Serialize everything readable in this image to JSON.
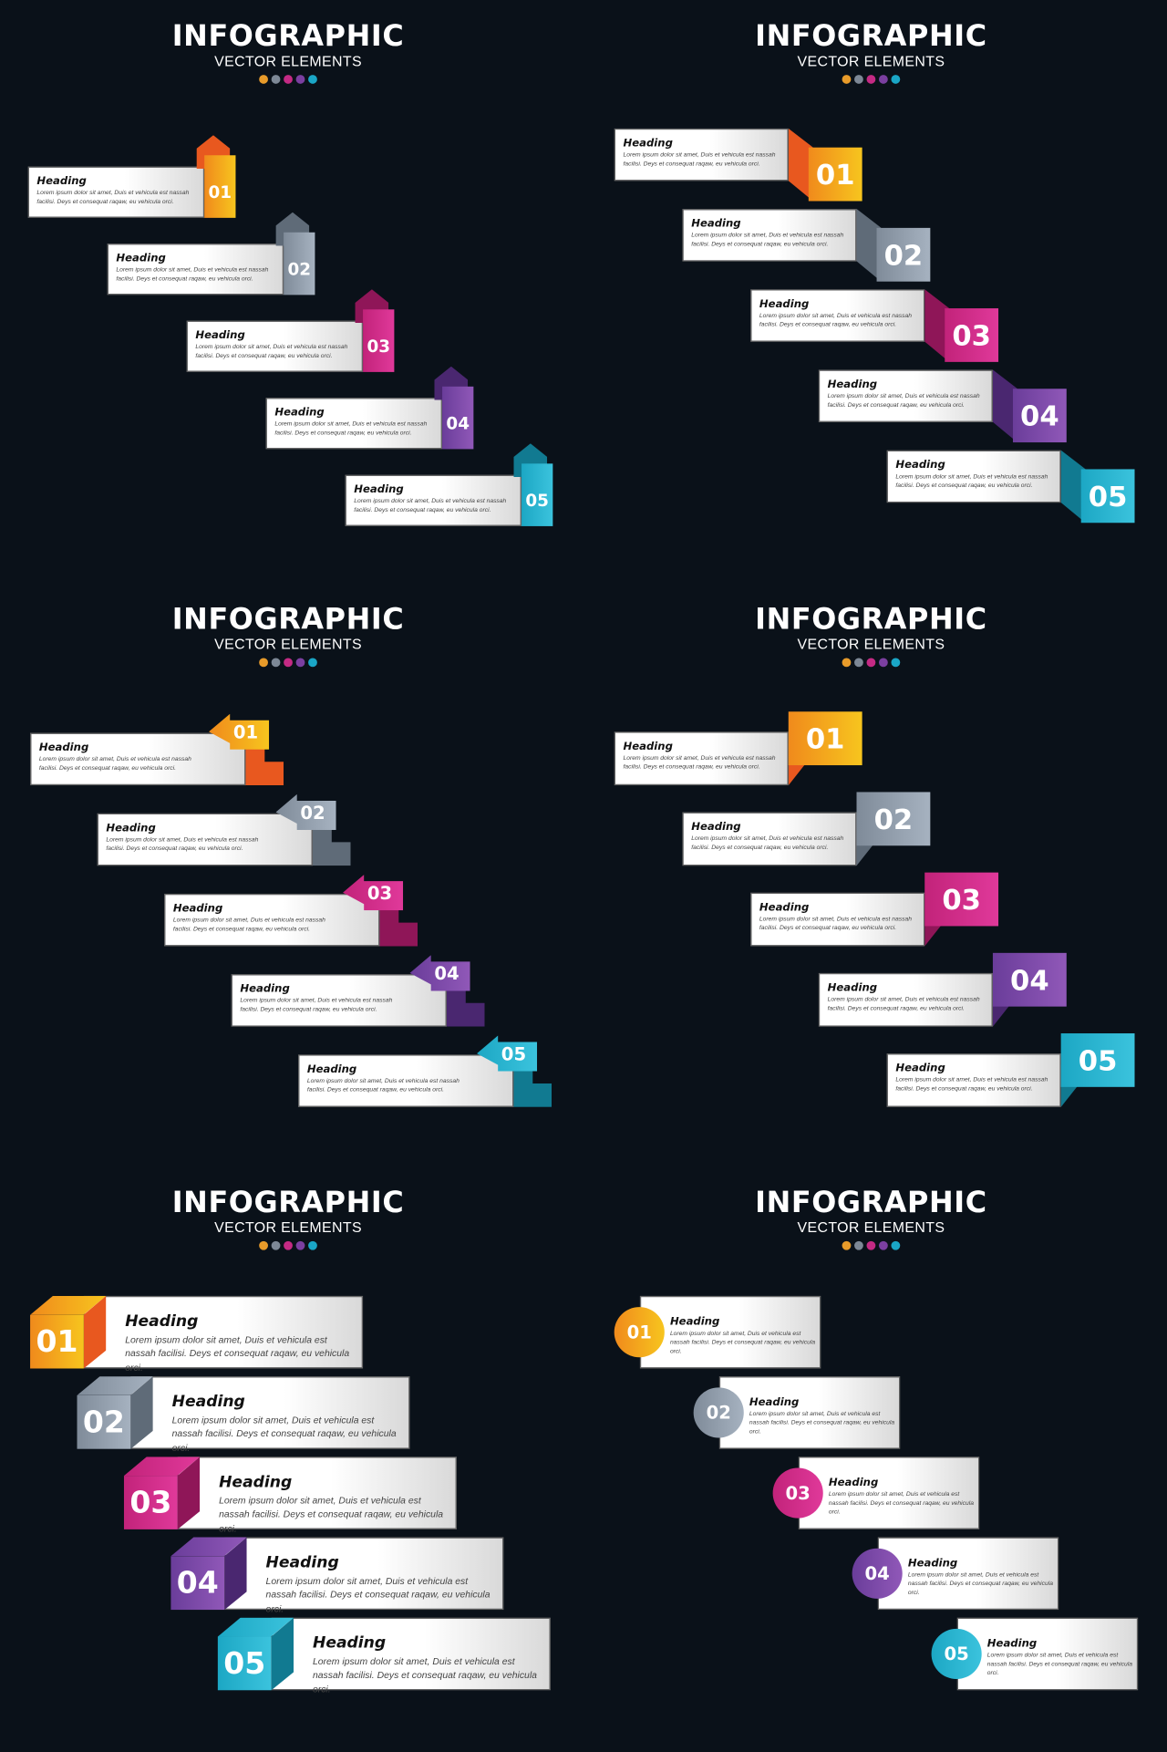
{
  "palette": {
    "c01": [
      "#f7c51e",
      "#f08a1c",
      "#e8581f"
    ],
    "c02": [
      "#a6b2c0",
      "#7f8b99",
      "#5f6b78"
    ],
    "c03": [
      "#e0399a",
      "#c2237a",
      "#8f1658"
    ],
    "c04": [
      "#9058b8",
      "#6a3d9a",
      "#4a2770"
    ],
    "c05": [
      "#3bc3dd",
      "#1ca7c4",
      "#117a91"
    ]
  },
  "dots": [
    "#e89b2a",
    "#7d8896",
    "#c42a84",
    "#7b3fa0",
    "#1aa6c6"
  ],
  "panels": [
    {
      "style": "arrow-up",
      "title": "INFOGRAPHIC",
      "subtitle": "VECTOR ELEMENTS",
      "items": [
        {
          "num": "01",
          "heading": "Heading",
          "body": "Lorem ipsum dolor sit amet, Duis et vehicula est nassah facilisi. Deys et consequat raqaw, eu vehicula orci."
        },
        {
          "num": "02",
          "heading": "Heading",
          "body": "Lorem ipsum dolor sit amet, Duis et vehicula est nassah facilisi. Deys et consequat raqaw, eu vehicula orci."
        },
        {
          "num": "03",
          "heading": "Heading",
          "body": "Lorem ipsum dolor sit amet, Duis et vehicula est nassah facilisi. Deys et consequat raqaw, eu vehicula orci."
        },
        {
          "num": "04",
          "heading": "Heading",
          "body": "Lorem ipsum dolor sit amet, Duis et vehicula est nassah facilisi. Deys et consequat raqaw, eu vehicula orci."
        },
        {
          "num": "05",
          "heading": "Heading",
          "body": "Lorem ipsum dolor sit amet, Duis et vehicula est nassah facilisi. Deys et consequat raqaw, eu vehicula orci."
        }
      ]
    },
    {
      "style": "fold-down",
      "title": "INFOGRAPHIC",
      "subtitle": "VECTOR ELEMENTS",
      "items": [
        {
          "num": "01",
          "heading": "Heading",
          "body": "Lorem ipsum dolor sit amet, Duis et vehicula est nassah facilisi. Deys et consequat raqaw, eu vehicula orci."
        },
        {
          "num": "02",
          "heading": "Heading",
          "body": "Lorem ipsum dolor sit amet, Duis et vehicula est nassah facilisi. Deys et consequat raqaw, eu vehicula orci."
        },
        {
          "num": "03",
          "heading": "Heading",
          "body": "Lorem ipsum dolor sit amet, Duis et vehicula est nassah facilisi. Deys et consequat raqaw, eu vehicula orci."
        },
        {
          "num": "04",
          "heading": "Heading",
          "body": "Lorem ipsum dolor sit amet, Duis et vehicula est nassah facilisi. Deys et consequat raqaw, eu vehicula orci."
        },
        {
          "num": "05",
          "heading": "Heading",
          "body": "Lorem ipsum dolor sit amet, Duis et vehicula est nassah facilisi. Deys et consequat raqaw, eu vehicula orci."
        }
      ]
    },
    {
      "style": "arrow-left",
      "title": "INFOGRAPHIC",
      "subtitle": "VECTOR ELEMENTS",
      "items": [
        {
          "num": "01",
          "heading": "Heading",
          "body": "Lorem ipsum dolor sit amet, Duis et vehicula est nassah facilisi. Deys et consequat raqaw, eu vehicula orci."
        },
        {
          "num": "02",
          "heading": "Heading",
          "body": "Lorem ipsum dolor sit amet, Duis et vehicula est nassah facilisi. Deys et consequat raqaw, eu vehicula orci."
        },
        {
          "num": "03",
          "heading": "Heading",
          "body": "Lorem ipsum dolor sit amet, Duis et vehicula est nassah facilisi. Deys et consequat raqaw, eu vehicula orci."
        },
        {
          "num": "04",
          "heading": "Heading",
          "body": "Lorem ipsum dolor sit amet, Duis et vehicula est nassah facilisi. Deys et consequat raqaw, eu vehicula orci."
        },
        {
          "num": "05",
          "heading": "Heading",
          "body": "Lorem ipsum dolor sit amet, Duis et vehicula est nassah facilisi. Deys et consequat raqaw, eu vehicula orci."
        }
      ]
    },
    {
      "style": "fold-up",
      "title": "INFOGRAPHIC",
      "subtitle": "VECTOR ELEMENTS",
      "items": [
        {
          "num": "01",
          "heading": "Heading",
          "body": "Lorem ipsum dolor sit amet, Duis et vehicula est nassah facilisi. Deys et consequat raqaw, eu vehicula orci."
        },
        {
          "num": "02",
          "heading": "Heading",
          "body": "Lorem ipsum dolor sit amet, Duis et vehicula est nassah facilisi. Deys et consequat raqaw, eu vehicula orci."
        },
        {
          "num": "03",
          "heading": "Heading",
          "body": "Lorem ipsum dolor sit amet, Duis et vehicula est nassah facilisi. Deys et consequat raqaw, eu vehicula orci."
        },
        {
          "num": "04",
          "heading": "Heading",
          "body": "Lorem ipsum dolor sit amet, Duis et vehicula est nassah facilisi. Deys et consequat raqaw, eu vehicula orci."
        },
        {
          "num": "05",
          "heading": "Heading",
          "body": "Lorem ipsum dolor sit amet, Duis et vehicula est nassah facilisi. Deys et consequat raqaw, eu vehicula orci."
        }
      ]
    },
    {
      "style": "cube",
      "title": "INFOGRAPHIC",
      "subtitle": "VECTOR ELEMENTS",
      "items": [
        {
          "num": "01",
          "heading": "Heading",
          "body": "Lorem ipsum dolor sit amet, Duis et vehicula est nassah facilisi. Deys et consequat raqaw, eu vehicula orci."
        },
        {
          "num": "02",
          "heading": "Heading",
          "body": "Lorem ipsum dolor sit amet, Duis et vehicula est nassah facilisi. Deys et consequat raqaw, eu vehicula orci."
        },
        {
          "num": "03",
          "heading": "Heading",
          "body": "Lorem ipsum dolor sit amet, Duis et vehicula est nassah facilisi. Deys et consequat raqaw, eu vehicula orci."
        },
        {
          "num": "04",
          "heading": "Heading",
          "body": "Lorem ipsum dolor sit amet, Duis et vehicula est nassah facilisi. Deys et consequat raqaw, eu vehicula orci."
        },
        {
          "num": "05",
          "heading": "Heading",
          "body": "Lorem ipsum dolor sit amet, Duis et vehicula est nassah facilisi. Deys et consequat raqaw, eu vehicula orci."
        }
      ]
    },
    {
      "style": "circle",
      "title": "INFOGRAPHIC",
      "subtitle": "VECTOR ELEMENTS",
      "items": [
        {
          "num": "01",
          "heading": "Heading",
          "body": "Lorem ipsum dolor sit amet, Duis et vehicula est nassah facilisi. Deys et consequat raqaw, eu vehicula orci."
        },
        {
          "num": "02",
          "heading": "Heading",
          "body": "Lorem ipsum dolor sit amet, Duis et vehicula est nassah facilisi. Deys et consequat raqaw, eu vehicula orci."
        },
        {
          "num": "03",
          "heading": "Heading",
          "body": "Lorem ipsum dolor sit amet, Duis et vehicula est nassah facilisi. Deys et consequat raqaw, eu vehicula orci."
        },
        {
          "num": "04",
          "heading": "Heading",
          "body": "Lorem ipsum dolor sit amet, Duis et vehicula est nassah facilisi. Deys et consequat raqaw, eu vehicula orci."
        },
        {
          "num": "05",
          "heading": "Heading",
          "body": "Lorem ipsum dolor sit amet, Duis et vehicula est nassah facilisi. Deys et consequat raqaw, eu vehicula orci."
        }
      ]
    }
  ]
}
